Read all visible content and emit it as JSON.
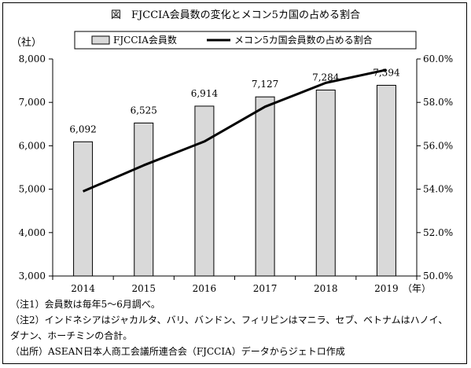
{
  "title": "図　FJCCIA会員数の変化とメコン5カ国の占める割合",
  "chart_data": {
    "type": "bar+line",
    "categories": [
      "2014",
      "2015",
      "2016",
      "2017",
      "2018",
      "2019"
    ],
    "series": [
      {
        "name": "FJCCIA会員数",
        "kind": "bar",
        "axis": "left",
        "values": [
          6092,
          6525,
          6914,
          7127,
          7284,
          7394
        ],
        "labels": [
          "6,092",
          "6,525",
          "6,914",
          "7,127",
          "7,284",
          "7,394"
        ]
      },
      {
        "name": "メコン5カ国会員数の占める割合",
        "kind": "line",
        "axis": "right",
        "values": [
          53.9,
          55.1,
          56.2,
          57.8,
          58.9,
          59.5
        ]
      }
    ],
    "y_left": {
      "label": "（社）",
      "min": 3000,
      "max": 8000,
      "ticks": [
        3000,
        4000,
        5000,
        6000,
        7000,
        8000
      ],
      "tick_labels": [
        "3,000",
        "4,000",
        "5,000",
        "6,000",
        "7,000",
        "8,000"
      ]
    },
    "y_right": {
      "min": 50,
      "max": 60,
      "ticks": [
        50,
        52,
        54,
        56,
        58,
        60
      ],
      "tick_labels": [
        "50.0%",
        "52.0%",
        "54.0%",
        "56.0%",
        "58.0%",
        "60.0%"
      ]
    },
    "x_unit": "（年）",
    "legend_position": "top",
    "grid": false,
    "colors": {
      "bar_fill": "#d9d9d9",
      "bar_stroke": "#000000",
      "line": "#000000"
    }
  },
  "notes": [
    "（注1）会員数は毎年5～6月調べ。",
    "（注2）インドネシアはジャカルタ、バリ、バンドン、フィリピンはマニラ、セブ、ベトナムはハノイ、",
    "ダナン、ホーチミンの合計。",
    "（出所）ASEAN日本人商工会議所連合会（FJCCIA）データからジェトロ作成"
  ]
}
